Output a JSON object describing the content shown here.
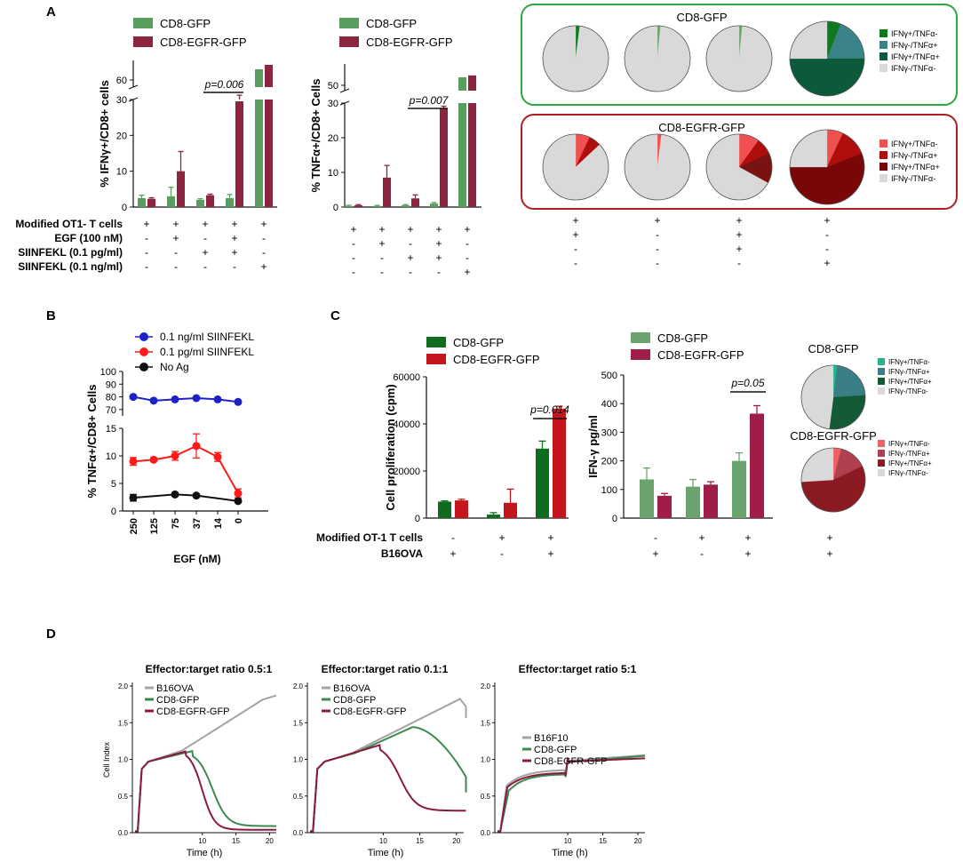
{
  "panels": {
    "A": "A",
    "B": "B",
    "C": "C",
    "D": "D"
  },
  "colors": {
    "gfp": "#5a9e5f",
    "egfr": "#8b2540",
    "gfp_dark": "#0f6b1e",
    "egfr_red": "#c4161c",
    "egfr_wine": "#9e1e47",
    "gfp_light": "#6aa36d",
    "blue": "#1d22c7",
    "red": "#ff1a1a",
    "black": "#111111",
    "grey": "#a3a3a3",
    "pie_grey": "#d9d9d9",
    "green_box": "#2ca840",
    "red_box": "#b01e24"
  },
  "chart_data": [
    {
      "id": "A1",
      "type": "bar",
      "ylabel": "% IFNγ+/CD8+ cells",
      "legend": [
        "CD8-GFP",
        "CD8-EGFR-GFP"
      ],
      "series": [
        {
          "name": "CD8-GFP",
          "values": [
            2.5,
            3,
            2,
            2.5,
            62
          ],
          "errors": [
            0.8,
            2.5,
            0.3,
            1,
            0
          ]
        },
        {
          "name": "CD8-EGFR-GFP",
          "values": [
            2.3,
            10,
            3.3,
            31.5,
            65
          ],
          "errors": [
            0.3,
            5.5,
            0.3,
            1.2,
            0
          ]
        }
      ],
      "ylim_lower": [
        0,
        30
      ],
      "yticks_lower": [
        "0",
        "10",
        "20",
        "30"
      ],
      "ytick_upper": "60",
      "annotation": "p=0.006",
      "condition_rows": [
        {
          "label": "Modified OT1- T cells",
          "values": [
            "+",
            "+",
            "+",
            "+",
            "+"
          ]
        },
        {
          "label": "EGF (100 nM)",
          "values": [
            "-",
            "+",
            "-",
            "+",
            "-"
          ]
        },
        {
          "label": "SIINFEKL (0.1 pg/ml)",
          "values": [
            "-",
            "-",
            "+",
            "+",
            "-"
          ]
        },
        {
          "label": "SIINFEKL (0.1 ng/ml)",
          "values": [
            "-",
            "-",
            "-",
            "-",
            "+"
          ]
        }
      ]
    },
    {
      "id": "A2",
      "type": "bar",
      "ylabel": "% TNFα+/CD8+ Cells",
      "legend": [
        "CD8-GFP",
        "CD8-EGFR-GFP"
      ],
      "series": [
        {
          "name": "CD8-GFP",
          "values": [
            0.3,
            0.3,
            0.5,
            1,
            55
          ],
          "errors": [
            0.2,
            0.2,
            0.2,
            0.3,
            0
          ]
        },
        {
          "name": "CD8-EGFR-GFP",
          "values": [
            0.5,
            8.5,
            2.5,
            28.5,
            56
          ],
          "errors": [
            0.2,
            3.5,
            1,
            0.6,
            0
          ]
        }
      ],
      "ylim_lower": [
        0,
        30
      ],
      "yticks_lower": [
        "0",
        "10",
        "20",
        "30"
      ],
      "ytick_upper": "50",
      "annotation": "p=0.007",
      "condition_rows": [
        {
          "values": [
            "+",
            "+",
            "+",
            "+",
            "+"
          ]
        },
        {
          "values": [
            "-",
            "+",
            "-",
            "+",
            "-"
          ]
        },
        {
          "values": [
            "-",
            "-",
            "+",
            "+",
            "-"
          ]
        },
        {
          "values": [
            "-",
            "-",
            "-",
            "-",
            "+"
          ]
        }
      ]
    },
    {
      "id": "A3",
      "type": "pie",
      "groups": [
        {
          "title": "CD8-GFP",
          "legend": [
            "IFNγ+/TNFα-",
            "IFNγ-/TNFα+",
            "IFNγ+/TNFα+",
            "IFNγ-/TNFα-"
          ],
          "legend_colors": [
            "#0e7a1f",
            "#3a8489",
            "#0c5a39",
            "#d9d9d9"
          ],
          "pies": [
            [
              {
                "v": 0.02,
                "c": "#0e7a1f"
              },
              {
                "v": 0.98,
                "c": "#d9d9d9"
              }
            ],
            [
              {
                "v": 0.015,
                "c": "#6aa36d"
              },
              {
                "v": 0.985,
                "c": "#d9d9d9"
              }
            ],
            [
              {
                "v": 0.015,
                "c": "#6aa36d"
              },
              {
                "v": 0.985,
                "c": "#d9d9d9"
              }
            ],
            [
              {
                "v": 0.06,
                "c": "#0e7a1f"
              },
              {
                "v": 0.19,
                "c": "#3a8489"
              },
              {
                "v": 0.5,
                "c": "#0c5a39"
              },
              {
                "v": 0.25,
                "c": "#d9d9d9"
              }
            ]
          ]
        },
        {
          "title": "CD8-EGFR-GFP",
          "legend": [
            "IFNγ+/TNFα-",
            "IFNγ-/TNFα+",
            "IFNγ+/TNFα+",
            "IFNγ-/TNFα-"
          ],
          "legend_colors": [
            "#f05050",
            "#b00d0d",
            "#7a0707",
            "#d9d9d9"
          ],
          "pies": [
            [
              {
                "v": 0.07,
                "c": "#f05050"
              },
              {
                "v": 0.06,
                "c": "#b00d0d"
              },
              {
                "v": 0.87,
                "c": "#d9d9d9"
              }
            ],
            [
              {
                "v": 0.02,
                "c": "#f05050"
              },
              {
                "v": 0.98,
                "c": "#d9d9d9"
              }
            ],
            [
              {
                "v": 0.1,
                "c": "#f05050"
              },
              {
                "v": 0.08,
                "c": "#b00d0d"
              },
              {
                "v": 0.15,
                "c": "#7a1212"
              },
              {
                "v": 0.67,
                "c": "#d9d9d9"
              }
            ],
            [
              {
                "v": 0.07,
                "c": "#f05050"
              },
              {
                "v": 0.12,
                "c": "#b00d0d"
              },
              {
                "v": 0.56,
                "c": "#7a0707"
              },
              {
                "v": 0.25,
                "c": "#d9d9d9"
              }
            ]
          ]
        }
      ],
      "condition_rows": [
        {
          "values": [
            "+",
            "+",
            "+",
            "+"
          ]
        },
        {
          "values": [
            "+",
            "-",
            "+",
            "-"
          ]
        },
        {
          "values": [
            "-",
            "-",
            "+",
            "-"
          ]
        },
        {
          "values": [
            "-",
            "-",
            "-",
            "+"
          ]
        }
      ]
    },
    {
      "id": "B",
      "type": "line",
      "ylabel": "% TNFα+/CD8+ Cells",
      "xlabel": "EGF (nM)",
      "categories": [
        "250",
        "125",
        "75",
        "37",
        "14",
        "0"
      ],
      "series": [
        {
          "name": "0.1 ng/ml SIINFEKL",
          "values": [
            80,
            77,
            78,
            79,
            78,
            76
          ],
          "errors": [
            0,
            0,
            0,
            0,
            0,
            0
          ]
        },
        {
          "name": "0.1 pg/ml SIINFEKL",
          "values": [
            9,
            9.3,
            10,
            11.8,
            9.8,
            3.2
          ],
          "errors": [
            0.7,
            0.3,
            0.8,
            2.2,
            0.8,
            0.8
          ]
        },
        {
          "name": "No Ag",
          "values": [
            2.4,
            null,
            3,
            2.8,
            null,
            1.8
          ],
          "errors": [
            0.6,
            0,
            0.3,
            0.2,
            0,
            0.2
          ]
        }
      ],
      "yticks_lower": [
        "0",
        "5",
        "10",
        "15"
      ],
      "yticks_upper": [
        "70",
        "80",
        "90",
        "100"
      ],
      "ylim_lower": [
        0,
        15
      ],
      "ylim_upper": [
        65,
        100
      ]
    },
    {
      "id": "C1",
      "type": "bar",
      "ylabel": "Cell proliferation (cpm)",
      "legend": [
        "CD8-GFP",
        "CD8-EGFR-GFP"
      ],
      "series": [
        {
          "name": "CD8-GFP",
          "values": [
            7000,
            1500,
            29500
          ],
          "errors": [
            300,
            800,
            3200
          ]
        },
        {
          "name": "CD8-EGFR-GFP",
          "values": [
            7500,
            6500,
            46500
          ],
          "errors": [
            500,
            5800,
            1000
          ]
        }
      ],
      "ylim": [
        0,
        60000
      ],
      "yticks": [
        "0",
        "20000",
        "40000",
        "60000"
      ],
      "annotation": "p=0.014",
      "condition_rows": [
        {
          "label": "Modified OT-1 T cells",
          "values": [
            "-",
            "+",
            "+"
          ]
        },
        {
          "label": "B16OVA",
          "values": [
            "+",
            "-",
            "+"
          ]
        }
      ]
    },
    {
      "id": "C2",
      "type": "bar",
      "ylabel": "IFN-γ pg/ml",
      "legend": [
        "CD8-GFP",
        "CD8-EGFR-GFP"
      ],
      "series": [
        {
          "name": "CD8-GFP",
          "values": [
            135,
            110,
            200
          ],
          "errors": [
            40,
            25,
            28
          ]
        },
        {
          "name": "CD8-EGFR-GFP",
          "values": [
            78,
            117,
            365
          ],
          "errors": [
            8,
            10,
            28
          ]
        }
      ],
      "ylim": [
        0,
        500
      ],
      "yticks": [
        "0",
        "100",
        "200",
        "300",
        "400",
        "500"
      ],
      "annotation": "p=0.05",
      "condition_rows": [
        {
          "values": [
            "-",
            "+",
            "+"
          ]
        },
        {
          "values": [
            "+",
            "-",
            "+"
          ]
        }
      ]
    },
    {
      "id": "C3",
      "type": "pie",
      "groups": [
        {
          "title": "CD8-GFP",
          "legend": [
            "IFNγ+/TNFα-",
            "IFNγ-/TNFα+",
            "IFNγ+/TNFα+",
            "IFNγ-/TNFα-"
          ],
          "legend_colors": [
            "#23b58a",
            "#3a7f86",
            "#145a35",
            "#d9d9d9"
          ],
          "slices": [
            {
              "v": 0.02,
              "c": "#23b58a"
            },
            {
              "v": 0.22,
              "c": "#3a7f86"
            },
            {
              "v": 0.28,
              "c": "#145a35"
            },
            {
              "v": 0.48,
              "c": "#d9d9d9"
            }
          ]
        },
        {
          "title": "CD8-EGFR-GFP",
          "legend": [
            "IFNγ+/TNFα-",
            "IFNγ-/TNFα+",
            "IFNγ+/TNFα+",
            "IFNγ-/TNFα-"
          ],
          "legend_colors": [
            "#f06060",
            "#b04050",
            "#8b1a22",
            "#d9d9d9"
          ],
          "slices": [
            {
              "v": 0.04,
              "c": "#f06060"
            },
            {
              "v": 0.14,
              "c": "#b04050"
            },
            {
              "v": 0.56,
              "c": "#8b1a22"
            },
            {
              "v": 0.26,
              "c": "#d9d9d9"
            }
          ]
        }
      ],
      "condition_rows": [
        {
          "values": [
            "+"
          ]
        },
        {
          "values": [
            "+"
          ]
        }
      ]
    },
    {
      "id": "D",
      "type": "line",
      "ylabel": "Cell Index",
      "xlabel": "Time (h)",
      "xticks": [
        "10",
        "15",
        "20"
      ],
      "yticks": [
        "0.0",
        "0.5",
        "1.0",
        "1.5",
        "2.0"
      ],
      "panels": [
        {
          "title": "Effector:target ratio 0.5:1",
          "legend": [
            "B16OVA",
            "CD8-GFP",
            "CD8-EGFR-GFP"
          ]
        },
        {
          "title": "Effector:target ratio 0.1:1",
          "legend": [
            "B16OVA",
            "CD8-GFP",
            "CD8-EGFR-GFP"
          ]
        },
        {
          "title": "Effector:target ratio 5:1",
          "legend": [
            "B16F10",
            "CD8-GFP",
            "CD8-EGFR-GFP"
          ]
        }
      ]
    }
  ]
}
